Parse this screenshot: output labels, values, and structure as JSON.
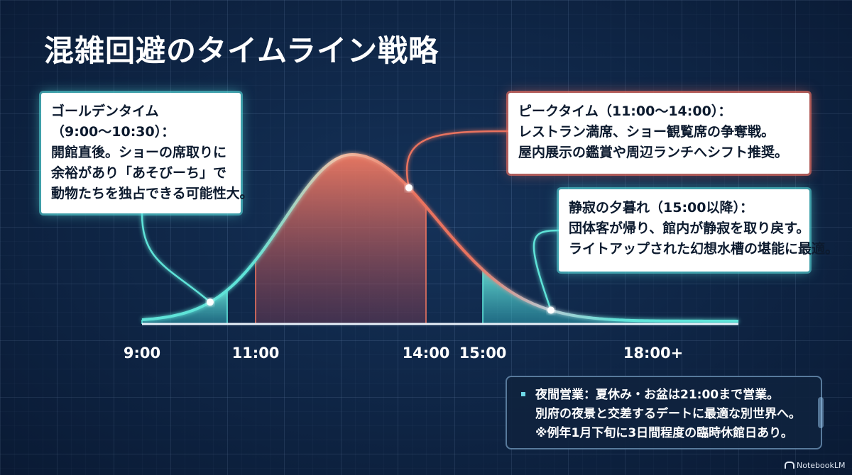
{
  "title": "混雑回避のタイムライン戦略",
  "colors": {
    "accent_cyan": "#5ee3d8",
    "accent_red": "#e9735f",
    "background": "#0f2748"
  },
  "callouts": {
    "golden": [
      "ゴールデンタイム",
      "（9:00〜10:30）：",
      "開館直後。ショーの席取りに",
      "余裕があり「あそびーち」で",
      "動物たちを独占できる可能性大。"
    ],
    "peak": [
      "ピークタイム（11:00〜14:00）：",
      "レストラン満席、ショー観覧席の争奪戦。",
      "屋内展示の鑑賞や周辺ランチへシフト推奨。"
    ],
    "evening": [
      "静寂の夕暮れ（15:00以降）：",
      "団体客が帰り、館内が静寂を取り戻す。",
      "ライトアップされた幻想水槽の堪能に最適。"
    ]
  },
  "night_box": [
    "夜間営業：夏休み・お盆は21:00まで営業。",
    "別府の夜景と交差するデートに最適な別世界へ。",
    "※例年1月下旬に3日間程度の臨時休館日あり。"
  ],
  "brand": "NotebookLM",
  "chart_data": {
    "type": "area",
    "title": "",
    "xlabel": "",
    "ylabel": "",
    "x_ticks": [
      "9:00",
      "11:00",
      "14:00",
      "15:00",
      "18:00+"
    ],
    "x_tick_hours": [
      9,
      11,
      14,
      15,
      18
    ],
    "curve": {
      "peak_hour": 12.7,
      "sigma_left": 1.2,
      "sigma_right": 1.5
    },
    "zones": [
      {
        "name": "golden",
        "from": 9,
        "to": 10.5,
        "color": "#5ee3d8"
      },
      {
        "name": "peak",
        "from": 11,
        "to": 14,
        "color": "#e9735f"
      },
      {
        "name": "evening",
        "from": 15,
        "to": 19.5,
        "color": "#5ee3d8"
      }
    ],
    "markers": [
      {
        "x": 10.2
      },
      {
        "x": 13.7
      },
      {
        "x": 16.2
      }
    ],
    "x_range": [
      9,
      19.5
    ],
    "grid": true,
    "legend": "none"
  }
}
